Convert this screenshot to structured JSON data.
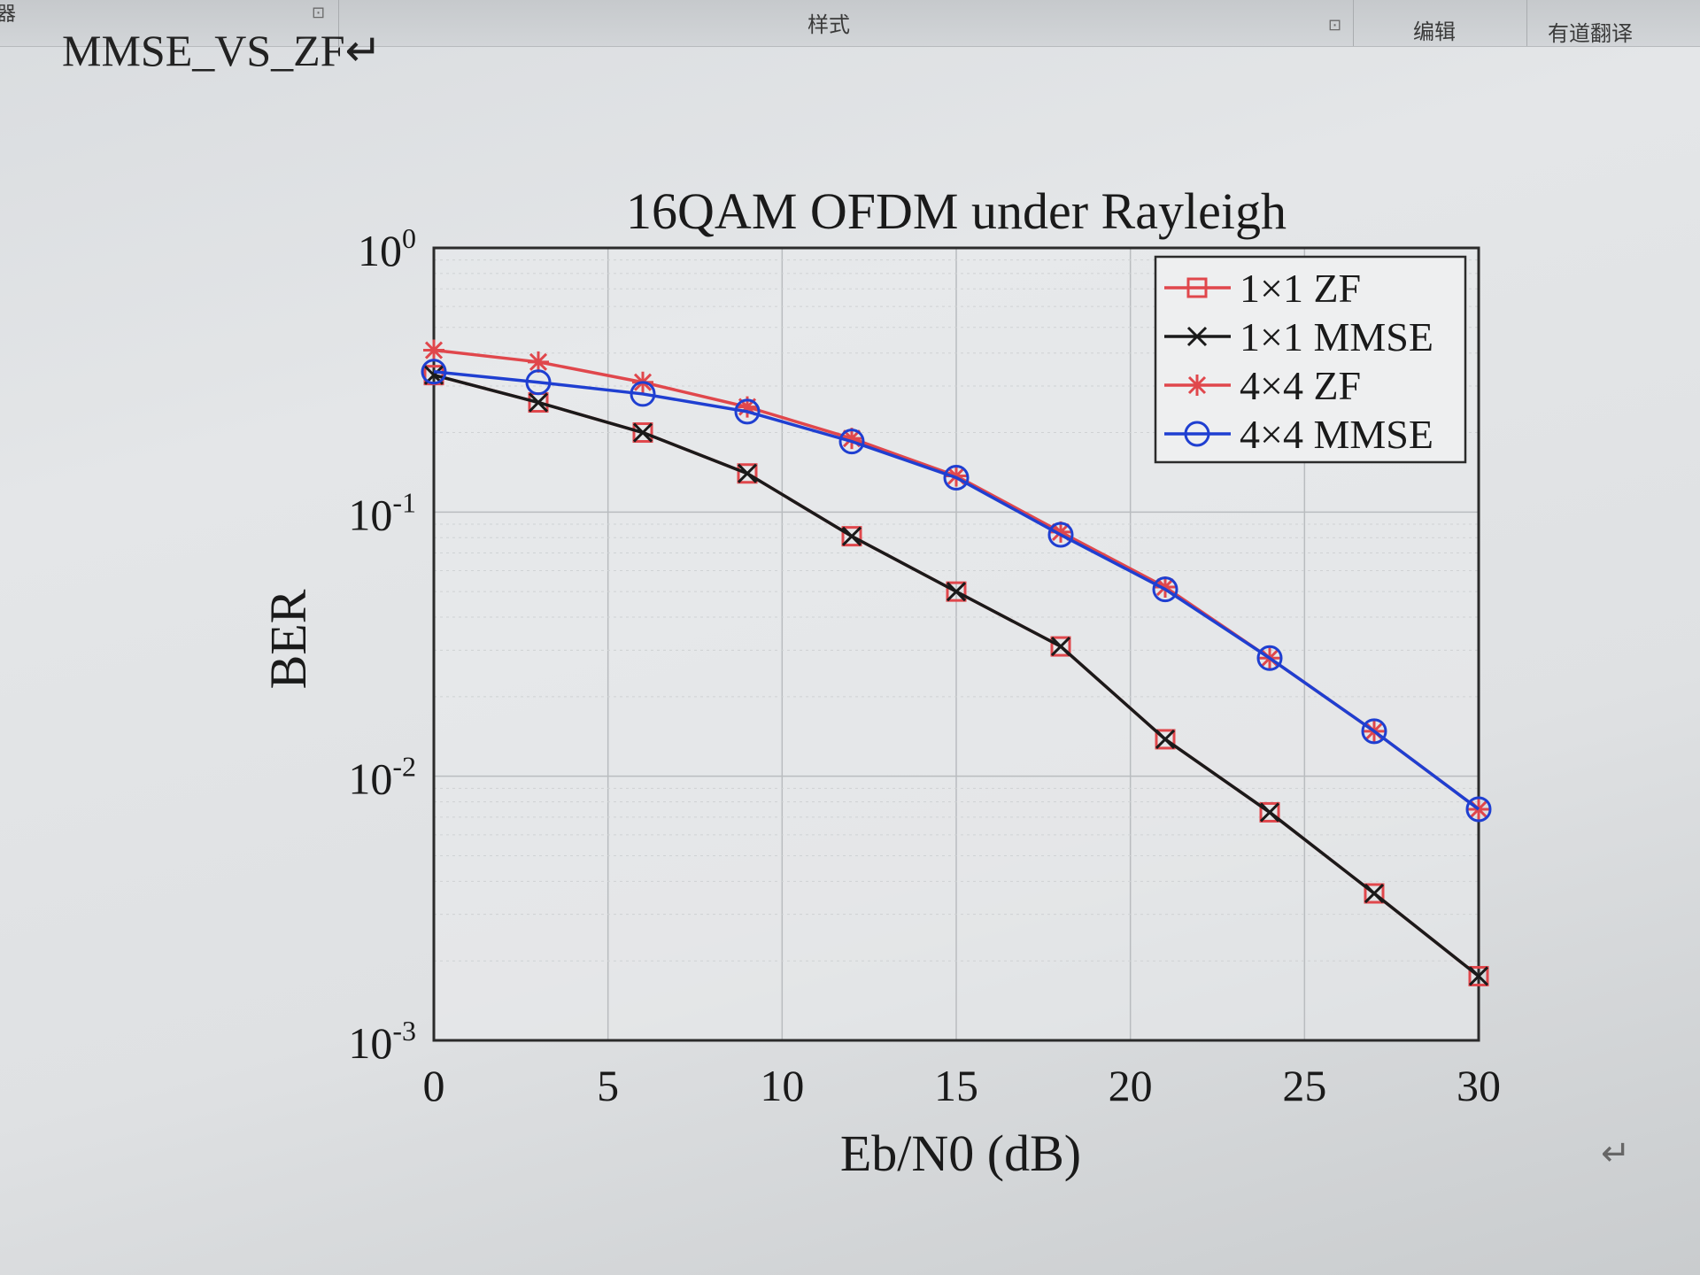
{
  "ribbon": {
    "left_fragment": "器",
    "styles_label": "样式",
    "edit_label": "编辑",
    "translate_label": "有道翻译",
    "launcher_icon": "dialog-launcher-icon"
  },
  "document": {
    "heading": "MMSE_VS_ZF↵",
    "paragraph_mark": "↵"
  },
  "chart_data": {
    "type": "line",
    "title": "16QAM OFDM under Rayleigh",
    "xlabel": "Eb/N0 (dB)",
    "ylabel": "BER",
    "xlim": [
      0,
      30
    ],
    "ylim": [
      0.001,
      1
    ],
    "yscale": "log",
    "xticks": [
      0,
      5,
      10,
      15,
      20,
      25,
      30
    ],
    "yticks": [
      {
        "value": 1,
        "base": "10",
        "exp": "0"
      },
      {
        "value": 0.1,
        "base": "10",
        "exp": "-1"
      },
      {
        "value": 0.01,
        "base": "10",
        "exp": "-2"
      },
      {
        "value": 0.001,
        "base": "10",
        "exp": "-3"
      }
    ],
    "grid": true,
    "legend_position": "top-right",
    "x": [
      0,
      3,
      6,
      9,
      12,
      15,
      18,
      21,
      24,
      27,
      30
    ],
    "series": [
      {
        "name": "1×1 ZF",
        "color": "#e0474c",
        "marker": "square",
        "values": [
          0.33,
          0.26,
          0.2,
          0.14,
          0.081,
          0.05,
          0.031,
          0.0138,
          0.0073,
          0.0036,
          0.00175
        ]
      },
      {
        "name": "1×1 MMSE",
        "color": "#1a1a1a",
        "marker": "x",
        "values": [
          0.33,
          0.26,
          0.2,
          0.14,
          0.081,
          0.05,
          0.031,
          0.0138,
          0.0073,
          0.0036,
          0.00175
        ]
      },
      {
        "name": "4×4 ZF",
        "color": "#e0474c",
        "marker": "star",
        "values": [
          0.41,
          0.37,
          0.31,
          0.25,
          0.19,
          0.137,
          0.084,
          0.052,
          0.028,
          0.0148,
          0.0075
        ]
      },
      {
        "name": "4×4 MMSE",
        "color": "#1f3fd1",
        "marker": "circle",
        "values": [
          0.34,
          0.31,
          0.28,
          0.24,
          0.185,
          0.135,
          0.082,
          0.051,
          0.028,
          0.0148,
          0.0075
        ]
      }
    ]
  }
}
